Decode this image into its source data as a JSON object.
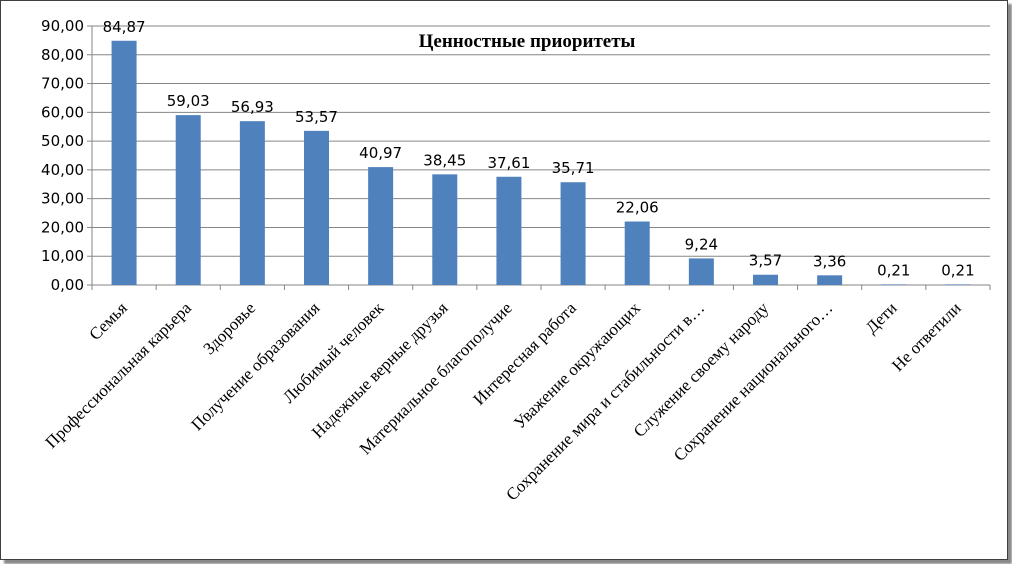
{
  "chart_data": {
    "type": "bar",
    "title": "Ценностные приоритеты",
    "xlabel": "",
    "ylabel": "",
    "ylim": [
      0,
      90
    ],
    "ytick_step": 10,
    "grid": true,
    "legend": "none",
    "bar_color": "#4f81bd",
    "categories": [
      "Семья",
      "Профессиональная карьера",
      "Здоровье",
      "Получение образования",
      "Любимый человек",
      "Надежные верные друзья",
      "Материальное благополучие",
      "Интересная работа",
      "Уважение окружающих",
      "Сохранение мира и стабильности в…",
      "Служение своему народу",
      "Сохранение национального…",
      "Дети",
      "Не ответили"
    ],
    "values": [
      84.87,
      59.03,
      56.93,
      53.57,
      40.97,
      38.45,
      37.61,
      35.71,
      22.06,
      9.24,
      3.57,
      3.36,
      0.21,
      0.21
    ],
    "value_labels": [
      "84,87",
      "59,03",
      "56,93",
      "53,57",
      "40,97",
      "38,45",
      "37,61",
      "35,71",
      "22,06",
      "9,24",
      "3,57",
      "3,36",
      "0,21",
      "0,21"
    ],
    "ytick_labels": [
      "0,00",
      "10,00",
      "20,00",
      "30,00",
      "40,00",
      "50,00",
      "60,00",
      "70,00",
      "80,00",
      "90,00"
    ]
  }
}
